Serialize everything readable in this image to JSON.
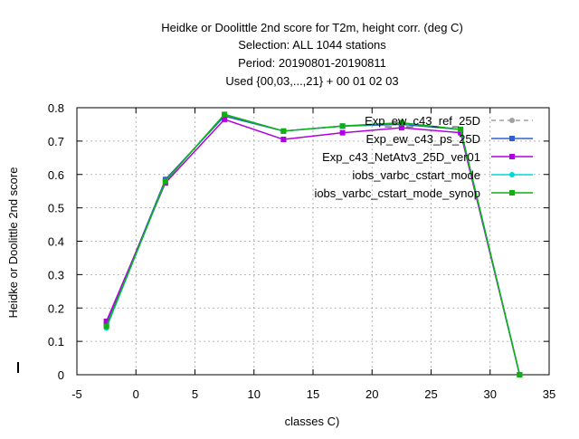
{
  "chart_data": {
    "type": "line",
    "title_lines": [
      "Heidke or Doolittle 2nd score  for T2m, height corr. (deg C)",
      "Selection: ALL    1044 stations",
      "Period: 20190801-20190811",
      "Used {00,03,...,21} + 00 01 02 03"
    ],
    "xlabel": "classes C)",
    "ylabel": "Heidke or Doolittle 2nd score",
    "xlim": [
      -5,
      35
    ],
    "ylim": [
      0,
      0.8
    ],
    "xticks": [
      -5,
      0,
      5,
      10,
      15,
      20,
      25,
      30,
      35
    ],
    "yticks": [
      0,
      0.1,
      0.2,
      0.3,
      0.4,
      0.5,
      0.6,
      0.7,
      0.8
    ],
    "xtick_labels": [
      "-5",
      "0",
      "5",
      "10",
      "15",
      "20",
      "25",
      "30",
      "35"
    ],
    "ytick_labels": [
      "0",
      "0.1",
      "0.2",
      "0.3",
      "0.4",
      "0.5",
      "0.6",
      "0.7",
      "0.8"
    ],
    "grid": true,
    "legend_position": "top-right",
    "x": [
      -2.5,
      2.5,
      7.5,
      12.5,
      17.5,
      22.5,
      27.5,
      32.5
    ],
    "series": [
      {
        "name": "Exp_ew_c43_ref_25D",
        "color": "#a0a0a0",
        "dash": true,
        "marker": "circle",
        "values": [
          0.15,
          0.585,
          0.775,
          0.73,
          0.745,
          0.75,
          0.735,
          0.0
        ]
      },
      {
        "name": "Exp_ew_c43_ps_25D",
        "color": "#3060d0",
        "dash": false,
        "marker": "square",
        "values": [
          0.15,
          0.585,
          0.775,
          0.73,
          0.745,
          0.75,
          0.735,
          0.0
        ]
      },
      {
        "name": "Exp_c43_NetAtv3_25D_ver01",
        "color": "#b000e0",
        "dash": false,
        "marker": "square",
        "values": [
          0.16,
          0.575,
          0.765,
          0.705,
          0.725,
          0.74,
          0.725,
          0.0
        ]
      },
      {
        "name": "iobs_varbc_cstart_mode",
        "color": "#00d8d8",
        "dash": false,
        "marker": "circle",
        "values": [
          0.14,
          0.58,
          0.78,
          0.73,
          0.745,
          0.755,
          0.735,
          0.0
        ]
      },
      {
        "name": "iobs_varbc_cstart_mode_synop",
        "color": "#10b010",
        "dash": false,
        "marker": "square",
        "values": [
          0.145,
          0.58,
          0.78,
          0.73,
          0.745,
          0.755,
          0.735,
          0.0
        ]
      }
    ]
  }
}
